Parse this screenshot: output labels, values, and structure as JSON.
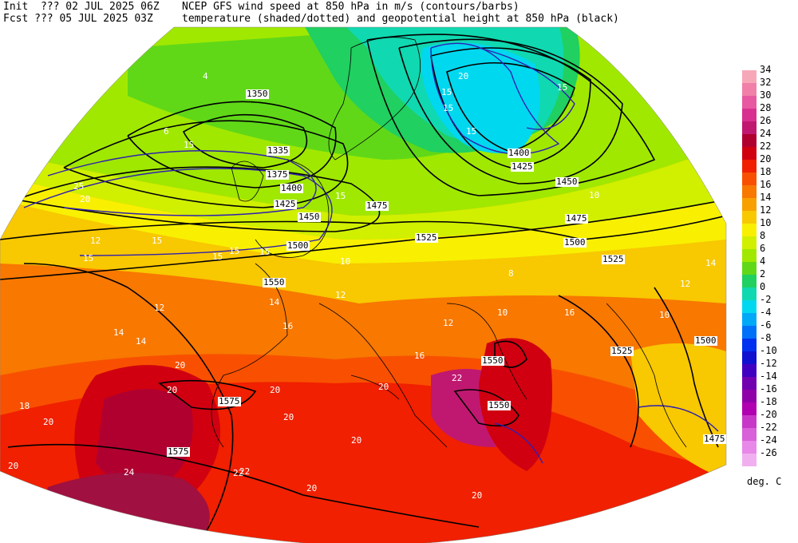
{
  "header": {
    "line1_left": "Init  ??? 02 JUL 2025 06Z",
    "line1_right": "NCEP GFS wind speed at 850 hPa in m/s (contours/barbs)",
    "line2_left": "Fcst ??? 05 JUL 2025 03Z",
    "line2_right": "temperature (shaded/dotted) and geopotential height at 850 hPa (black)"
  },
  "legend": {
    "unit": "deg. C",
    "entries": [
      {
        "label": "34",
        "color": "#f7a8b8"
      },
      {
        "label": "32",
        "color": "#f080a8"
      },
      {
        "label": "30",
        "color": "#e858a0"
      },
      {
        "label": "28",
        "color": "#d83090"
      },
      {
        "label": "26",
        "color": "#c01870"
      },
      {
        "label": "24",
        "color": "#b00030"
      },
      {
        "label": "22",
        "color": "#d00010"
      },
      {
        "label": "20",
        "color": "#f02000"
      },
      {
        "label": "18",
        "color": "#f85000"
      },
      {
        "label": "16",
        "color": "#f87800"
      },
      {
        "label": "14",
        "color": "#f8a000"
      },
      {
        "label": "12",
        "color": "#f8c800"
      },
      {
        "label": "10",
        "color": "#f8f000"
      },
      {
        "label": "8",
        "color": "#d0f000"
      },
      {
        "label": "6",
        "color": "#a0e800"
      },
      {
        "label": "4",
        "color": "#60d818"
      },
      {
        "label": "2",
        "color": "#20d060"
      },
      {
        "label": "0",
        "color": "#10d8b0"
      },
      {
        "label": "-2",
        "color": "#00d8f0"
      },
      {
        "label": "-4",
        "color": "#00a8f8"
      },
      {
        "label": "-6",
        "color": "#0070f8"
      },
      {
        "label": "-8",
        "color": "#0030f0"
      },
      {
        "label": "-10",
        "color": "#1010d0"
      },
      {
        "label": "-12",
        "color": "#4000c0"
      },
      {
        "label": "-14",
        "color": "#7000b0"
      },
      {
        "label": "-16",
        "color": "#9000a8"
      },
      {
        "label": "-18",
        "color": "#b000b0"
      },
      {
        "label": "-20",
        "color": "#c838c8"
      },
      {
        "label": "-22",
        "color": "#d860d8"
      },
      {
        "label": "-24",
        "color": "#e888e8"
      },
      {
        "label": "-26",
        "color": "#f0b0f0"
      }
    ]
  },
  "height_labels": [
    "1350",
    "1335",
    "1375",
    "1400",
    "1425",
    "1450",
    "1475",
    "1500",
    "1525",
    "1550",
    "1575",
    "1400",
    "1425",
    "1450",
    "1475",
    "1500",
    "1525",
    "1550",
    "1525",
    "1500",
    "1475",
    "1575",
    "1550"
  ],
  "wind_labels": [
    "15",
    "20",
    "25",
    "15",
    "15",
    "15",
    "15",
    "15",
    "15",
    "20",
    "15",
    "15",
    "15",
    "15"
  ],
  "temp_labels": [
    "4",
    "6",
    "12",
    "12",
    "14",
    "10",
    "8",
    "10",
    "12",
    "14",
    "16",
    "20",
    "20",
    "20",
    "20",
    "22",
    "20",
    "20",
    "18",
    "16",
    "14",
    "12",
    "10",
    "10",
    "12",
    "14",
    "16",
    "20",
    "20",
    "22",
    "24",
    "22",
    "20",
    "20"
  ],
  "colors": {
    "cold": "#10d8e8",
    "mild": "#a0e800",
    "warm": "#f8c800",
    "hot": "#f02000",
    "veryhot": "#b00030"
  }
}
